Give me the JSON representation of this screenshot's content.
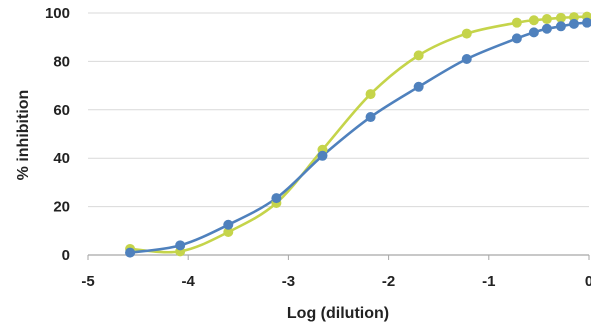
{
  "chart_data": {
    "type": "line",
    "title": "",
    "xlabel": "Log (dilution)",
    "ylabel": "% inhibition",
    "xlim": [
      -5,
      0
    ],
    "ylim": [
      0,
      100
    ],
    "x_ticks": [
      -5,
      -4,
      -3,
      -2,
      -1,
      0
    ],
    "y_ticks": [
      0,
      20,
      40,
      60,
      80,
      100
    ],
    "x_tick_labels": [
      "-5",
      "-4",
      "-3",
      "-2",
      "-1",
      "0"
    ],
    "y_tick_labels": [
      "0",
      "20",
      "40",
      "60",
      "80",
      "100"
    ],
    "grid": "horizontal major gridlines",
    "legend": "none",
    "series": [
      {
        "color": "#c5d44a",
        "marker": "circle",
        "smooth": true,
        "x": [
          -4.58,
          -4.08,
          -3.6,
          -3.12,
          -2.66,
          -2.18,
          -1.7,
          -1.22,
          -0.72,
          -0.55,
          -0.42,
          -0.28,
          -0.15,
          -0.02
        ],
        "y": [
          2.5,
          1.5,
          9.5,
          21.5,
          43.5,
          66.5,
          82.5,
          91.5,
          96,
          97,
          97.5,
          98,
          98.3,
          98.5
        ]
      },
      {
        "color": "#4f81bd",
        "marker": "circle",
        "smooth": true,
        "x": [
          -4.58,
          -4.08,
          -3.6,
          -3.12,
          -2.66,
          -2.18,
          -1.7,
          -1.22,
          -0.72,
          -0.55,
          -0.42,
          -0.28,
          -0.15,
          -0.02
        ],
        "y": [
          1,
          4,
          12.5,
          23.5,
          41,
          57,
          69.5,
          81,
          89.5,
          92,
          93.5,
          94.5,
          95.5,
          96
        ]
      }
    ]
  }
}
